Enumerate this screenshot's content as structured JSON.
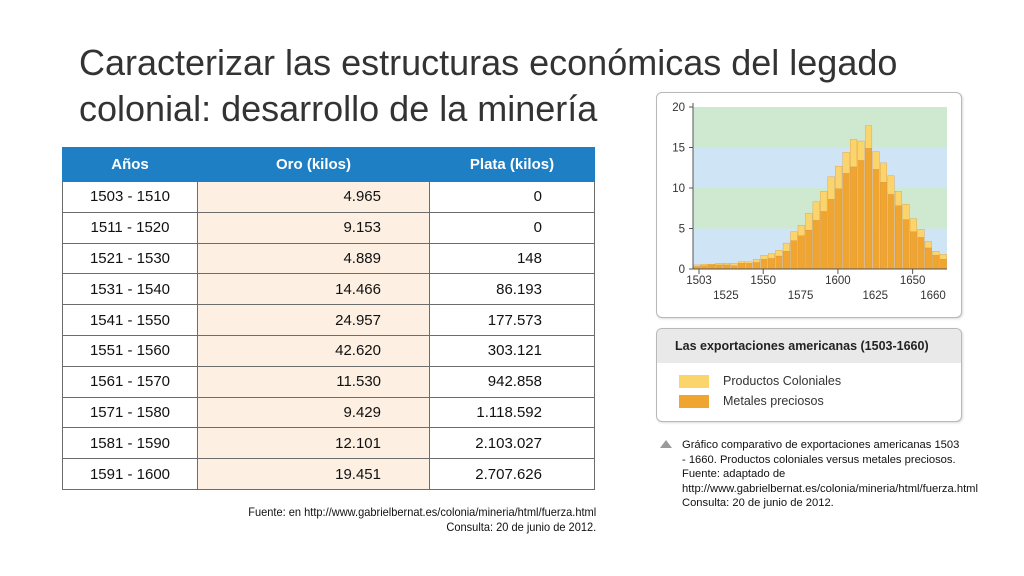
{
  "title": {
    "line1": "Caracterizar las estructuras económicas del legado",
    "line2": "colonial: desarrollo de la minería"
  },
  "table": {
    "headers": [
      "Años",
      "Oro (kilos)",
      "Plata (kilos)"
    ],
    "rows": [
      [
        "1503 - 1510",
        "4.965",
        "0"
      ],
      [
        "1511 - 1520",
        "9.153",
        "0"
      ],
      [
        "1521 - 1530",
        "4.889",
        "148"
      ],
      [
        "1531 - 1540",
        "14.466",
        "86.193"
      ],
      [
        "1541 - 1550",
        "24.957",
        "177.573"
      ],
      [
        "1551 - 1560",
        "42.620",
        "303.121"
      ],
      [
        "1561 - 1570",
        "11.530",
        "942.858"
      ],
      [
        "1571 - 1580",
        "9.429",
        "1.118.592"
      ],
      [
        "1581 - 1590",
        "12.101",
        "2.103.027"
      ],
      [
        "1591 - 1600",
        "19.451",
        "2.707.626"
      ]
    ],
    "source_line1": "Fuente: en http://www.gabrielbernat.es/colonia/mineria/html/fuerza.html",
    "source_line2": "Consulta: 20 de junio de 2012."
  },
  "chart_data": {
    "type": "bar",
    "stacked": true,
    "x_start": 1503,
    "x_step": 5,
    "ylim": [
      0,
      20
    ],
    "yticks": [
      "0",
      "5",
      "10",
      "15",
      "20"
    ],
    "xticks_top": [
      "1503",
      "1550",
      "1600",
      "1650"
    ],
    "xticks_bottom": [
      "1525",
      "1575",
      "1625",
      "1660"
    ],
    "series": [
      {
        "name": "Metales preciosos",
        "color": "#f0a531",
        "values": [
          0.3,
          0.4,
          0.5,
          0.5,
          0.5,
          0.4,
          0.7,
          0.7,
          0.8,
          1.2,
          1.3,
          1.6,
          2.2,
          3.5,
          4.1,
          4.8,
          6.0,
          7.1,
          8.6,
          9.9,
          11.8,
          12.6,
          13.4,
          14.9,
          12.3,
          10.7,
          9.2,
          7.8,
          6.1,
          4.6,
          3.9,
          2.6,
          1.7,
          1.2
        ]
      },
      {
        "name": "Productos Coloniales",
        "color": "#fbd56b",
        "values": [
          0.2,
          0.2,
          0.1,
          0.2,
          0.2,
          0.3,
          0.2,
          0.2,
          0.4,
          0.5,
          0.6,
          0.7,
          1.0,
          1.1,
          1.3,
          2.1,
          2.3,
          2.5,
          2.8,
          2.8,
          2.6,
          3.4,
          2.4,
          2.8,
          2.2,
          2.4,
          2.3,
          1.8,
          1.9,
          1.6,
          1.0,
          0.8,
          0.5,
          0.6
        ]
      }
    ],
    "bands": [
      "#cfe9d0",
      "#cfe4f4"
    ]
  },
  "legend": {
    "title": "Las exportaciones americanas (1503-1660)",
    "item1": "Productos Coloniales",
    "item2": "Metales preciosos",
    "color1": "#fbd56b",
    "color2": "#f0a531"
  },
  "caption": {
    "text1": "Gráfico comparativo de exportaciones americanas 1503 - 1660. Productos coloniales versus metales preciosos.",
    "text2": "Fuente: adaptado de http://www.gabrielbernat.es/colonia/mineria/html/fuerza.html",
    "text3": "Consulta: 20 de junio de 2012."
  }
}
